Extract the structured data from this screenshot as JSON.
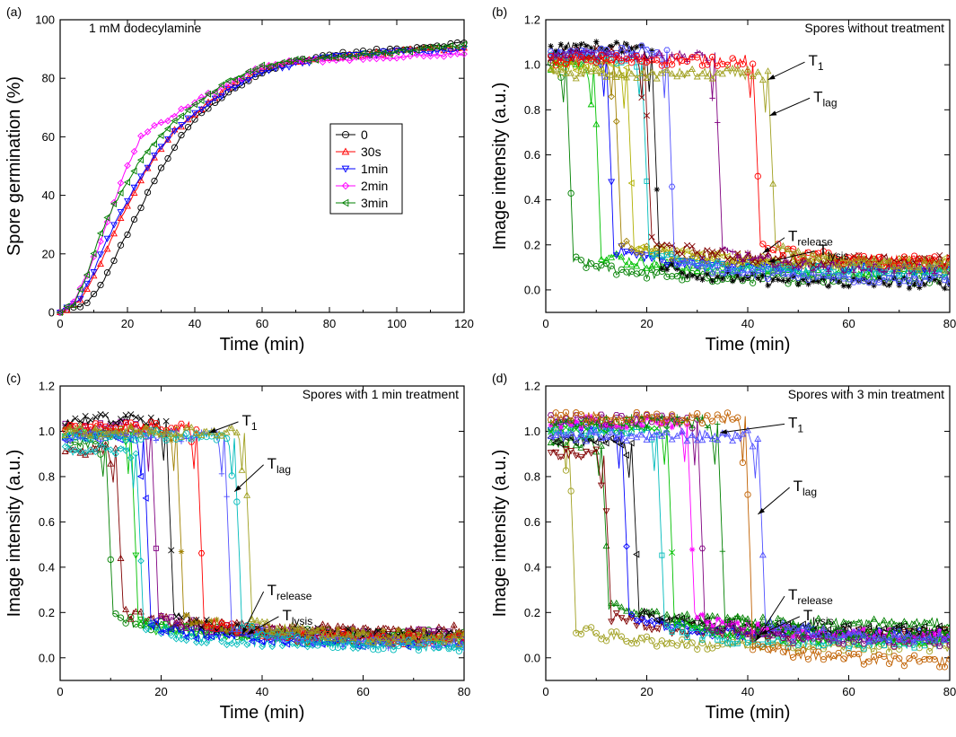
{
  "chart_data": [
    {
      "panel_label": "(a)",
      "type": "scatter",
      "annotation": "1 mM dodecylamine",
      "xlabel": "Time (min)",
      "ylabel": "Spore germination (%)",
      "xlim": [
        0,
        120
      ],
      "ylim": [
        0,
        100
      ],
      "xticks": [
        "0",
        "20",
        "40",
        "60",
        "80",
        "100",
        "120"
      ],
      "yticks": [
        "0",
        "20",
        "40",
        "60",
        "80",
        "100"
      ],
      "legend_position": "center",
      "series": [
        {
          "name": "0",
          "color": "#000000",
          "marker": "circle",
          "x": [
            0,
            8,
            12,
            16,
            20,
            24,
            28,
            32,
            36,
            40,
            50,
            60,
            70,
            80,
            90,
            100,
            110,
            120
          ],
          "y": [
            0,
            3,
            9,
            18,
            27,
            36,
            45,
            53,
            60,
            66,
            75,
            82,
            86,
            88,
            89,
            90,
            91,
            92
          ]
        },
        {
          "name": "30s",
          "color": "#ff0000",
          "marker": "triangle-up",
          "x": [
            0,
            6,
            10,
            14,
            18,
            22,
            26,
            30,
            34,
            40,
            50,
            60,
            70,
            80,
            90,
            100,
            110,
            120
          ],
          "y": [
            0,
            4,
            12,
            22,
            32,
            41,
            49,
            56,
            62,
            68,
            77,
            83,
            86,
            87,
            88,
            89,
            90,
            90
          ]
        },
        {
          "name": "1min",
          "color": "#0000ff",
          "marker": "triangle-down",
          "x": [
            0,
            6,
            10,
            14,
            18,
            22,
            26,
            30,
            34,
            40,
            50,
            60,
            70,
            80,
            90,
            100,
            110,
            120
          ],
          "y": [
            0,
            5,
            14,
            25,
            34,
            43,
            50,
            57,
            62,
            68,
            76,
            82,
            85,
            87,
            88,
            89,
            89,
            90
          ]
        },
        {
          "name": "2min",
          "color": "#ff00ff",
          "marker": "diamond",
          "x": [
            0,
            4,
            8,
            12,
            16,
            20,
            24,
            28,
            32,
            36,
            40,
            50,
            60,
            70,
            80,
            90,
            100,
            110,
            120
          ],
          "y": [
            0,
            4,
            13,
            24,
            38,
            50,
            60,
            64,
            66,
            69,
            72,
            78,
            84,
            86,
            86,
            87,
            87,
            88,
            88
          ]
        },
        {
          "name": "3min",
          "color": "#008000",
          "marker": "triangle-left",
          "x": [
            0,
            4,
            8,
            12,
            16,
            20,
            24,
            28,
            32,
            36,
            40,
            50,
            60,
            70,
            80,
            90,
            100,
            110,
            120
          ],
          "y": [
            0,
            3,
            13,
            27,
            37,
            45,
            52,
            58,
            63,
            67,
            71,
            79,
            84,
            86,
            87,
            88,
            89,
            90,
            91
          ]
        }
      ]
    },
    {
      "panel_label": "(b)",
      "type": "scatter",
      "annotation": "Spores without treatment",
      "xlabel": "Time (min)",
      "ylabel": "Image intensity (a.u.)",
      "xlim": [
        0,
        80
      ],
      "ylim": [
        -0.1,
        1.2
      ],
      "xticks": [
        "0",
        "20",
        "40",
        "60",
        "80"
      ],
      "yticks": [
        "0.0",
        "0.2",
        "0.4",
        "0.6",
        "0.8",
        "1.0",
        "1.2"
      ],
      "markers": [
        {
          "main": "T",
          "sub": "1",
          "x": 43.5,
          "y": 0.93,
          "label_x": 52,
          "label_y": 1.02
        },
        {
          "main": "T",
          "sub": "lag",
          "x": 43.8,
          "y": 0.77,
          "label_x": 53,
          "label_y": 0.86
        },
        {
          "main": "T",
          "sub": "release",
          "x": 42.5,
          "y": 0.16,
          "label_x": 48,
          "label_y": 0.24
        },
        {
          "main": "T",
          "sub": "lysis",
          "x": 43.5,
          "y": 0.12,
          "label_x": 54,
          "label_y": 0.18
        }
      ],
      "curves": [
        {
          "color": "#008000",
          "t_drop": 4,
          "pre": 1.0,
          "post": 0.05
        },
        {
          "color": "#00c000",
          "t_drop": 9.5,
          "pre": 1.0,
          "post": 0.08
        },
        {
          "color": "#0000ff",
          "t_drop": 12,
          "pre": 1.04,
          "post": 0.1
        },
        {
          "color": "#a08000",
          "t_drop": 13.5,
          "pre": 1.02,
          "post": 0.12
        },
        {
          "color": "#b0b000",
          "t_drop": 16,
          "pre": 1.0,
          "post": 0.12
        },
        {
          "color": "#00bbbb",
          "t_drop": 19,
          "pre": 1.03,
          "post": 0.08
        },
        {
          "color": "#800000",
          "t_drop": 19.5,
          "pre": 1.05,
          "post": 0.13
        },
        {
          "color": "#000000",
          "t_drop": 21,
          "pre": 1.08,
          "post": 0.03
        },
        {
          "color": "#5050ff",
          "t_drop": 24,
          "pre": 1.06,
          "post": 0.05
        },
        {
          "color": "#800080",
          "t_drop": 33.5,
          "pre": 1.04,
          "post": 0.09
        },
        {
          "color": "#ff0000",
          "t_drop": 41,
          "pre": 1.02,
          "post": 0.12
        },
        {
          "color": "#a0a020",
          "t_drop": 44,
          "pre": 0.96,
          "post": 0.1
        }
      ]
    },
    {
      "panel_label": "(c)",
      "type": "scatter",
      "annotation": "Spores with 1 min treatment",
      "xlabel": "Time (min)",
      "ylabel": "Image intensity (a.u.)",
      "xlim": [
        0,
        80
      ],
      "ylim": [
        -0.1,
        1.2
      ],
      "xticks": [
        "0",
        "20",
        "40",
        "60",
        "80"
      ],
      "yticks": [
        "0.0",
        "0.2",
        "0.4",
        "0.6",
        "0.8",
        "1.0",
        "1.2"
      ],
      "markers": [
        {
          "main": "T",
          "sub": "1",
          "x": 29,
          "y": 0.99,
          "label_x": 36,
          "label_y": 1.05
        },
        {
          "main": "T",
          "sub": "lag",
          "x": 34,
          "y": 0.73,
          "label_x": 41,
          "label_y": 0.86
        },
        {
          "main": "T",
          "sub": "release",
          "x": 35.5,
          "y": 0.1,
          "label_x": 41,
          "label_y": 0.3
        },
        {
          "main": "T",
          "sub": "lysis",
          "x": 36.5,
          "y": 0.1,
          "label_x": 44,
          "label_y": 0.19
        }
      ],
      "curves": [
        {
          "color": "#008000",
          "t_drop": 9,
          "pre": 0.95,
          "post": 0.1
        },
        {
          "color": "#800000",
          "t_drop": 11,
          "pre": 0.92,
          "post": 0.12
        },
        {
          "color": "#00c000",
          "t_drop": 14,
          "pre": 1.0,
          "post": 0.08
        },
        {
          "color": "#00bbbb",
          "t_drop": 15,
          "pre": 0.92,
          "post": 0.06
        },
        {
          "color": "#0000ff",
          "t_drop": 16.5,
          "pre": 0.98,
          "post": 0.07
        },
        {
          "color": "#800080",
          "t_drop": 18,
          "pre": 1.02,
          "post": 0.1
        },
        {
          "color": "#000000",
          "t_drop": 21,
          "pre": 1.05,
          "post": 0.1
        },
        {
          "color": "#a08000",
          "t_drop": 23,
          "pre": 1.0,
          "post": 0.1
        },
        {
          "color": "#ff0000",
          "t_drop": 27,
          "pre": 1.02,
          "post": 0.08
        },
        {
          "color": "#5050ff",
          "t_drop": 32.5,
          "pre": 0.98,
          "post": 0.06
        },
        {
          "color": "#00bbbb",
          "t_drop": 34.5,
          "pre": 0.98,
          "post": 0.05
        },
        {
          "color": "#a0a020",
          "t_drop": 36.5,
          "pre": 1.0,
          "post": 0.08
        }
      ]
    },
    {
      "panel_label": "(d)",
      "type": "scatter",
      "annotation": "Spores with 3 min treatment",
      "xlabel": "Time (min)",
      "ylabel": "Image intensity (a.u.)",
      "xlim": [
        0,
        80
      ],
      "ylim": [
        -0.1,
        1.2
      ],
      "xticks": [
        "0",
        "20",
        "40",
        "60",
        "80"
      ],
      "yticks": [
        "0.0",
        "0.2",
        "0.4",
        "0.6",
        "0.8",
        "1.0",
        "1.2"
      ],
      "markers": [
        {
          "main": "T",
          "sub": "1",
          "x": 34,
          "y": 0.99,
          "label_x": 48,
          "label_y": 1.04
        },
        {
          "main": "T",
          "sub": "lag",
          "x": 41.5,
          "y": 0.63,
          "label_x": 49,
          "label_y": 0.76
        },
        {
          "main": "T",
          "sub": "release",
          "x": 41,
          "y": 0.07,
          "label_x": 48,
          "label_y": 0.28
        },
        {
          "main": "T",
          "sub": "lysis",
          "x": 42,
          "y": 0.1,
          "label_x": 51,
          "label_y": 0.19
        }
      ],
      "curves": [
        {
          "color": "#a0a020",
          "t_drop": 4.5,
          "pre": 1.0,
          "post": 0.05
        },
        {
          "color": "#008000",
          "t_drop": 11,
          "pre": 0.95,
          "post": 0.15
        },
        {
          "color": "#800000",
          "t_drop": 11.5,
          "pre": 0.9,
          "post": 0.1
        },
        {
          "color": "#0000ff",
          "t_drop": 15,
          "pre": 1.02,
          "post": 0.1
        },
        {
          "color": "#000000",
          "t_drop": 17,
          "pre": 0.96,
          "post": 0.12
        },
        {
          "color": "#00bbbb",
          "t_drop": 22,
          "pre": 1.0,
          "post": 0.06
        },
        {
          "color": "#00c000",
          "t_drop": 24,
          "pre": 1.02,
          "post": 0.08
        },
        {
          "color": "#ff00ff",
          "t_drop": 28,
          "pre": 1.04,
          "post": 0.1
        },
        {
          "color": "#800080",
          "t_drop": 30,
          "pre": 1.05,
          "post": 0.07
        },
        {
          "color": "#008000",
          "t_drop": 34,
          "pre": 1.04,
          "post": 0.1
        },
        {
          "color": "#c06000",
          "t_drop": 39.5,
          "pre": 1.06,
          "post": -0.02
        },
        {
          "color": "#5050ff",
          "t_drop": 42,
          "pre": 0.98,
          "post": 0.08
        }
      ]
    }
  ]
}
